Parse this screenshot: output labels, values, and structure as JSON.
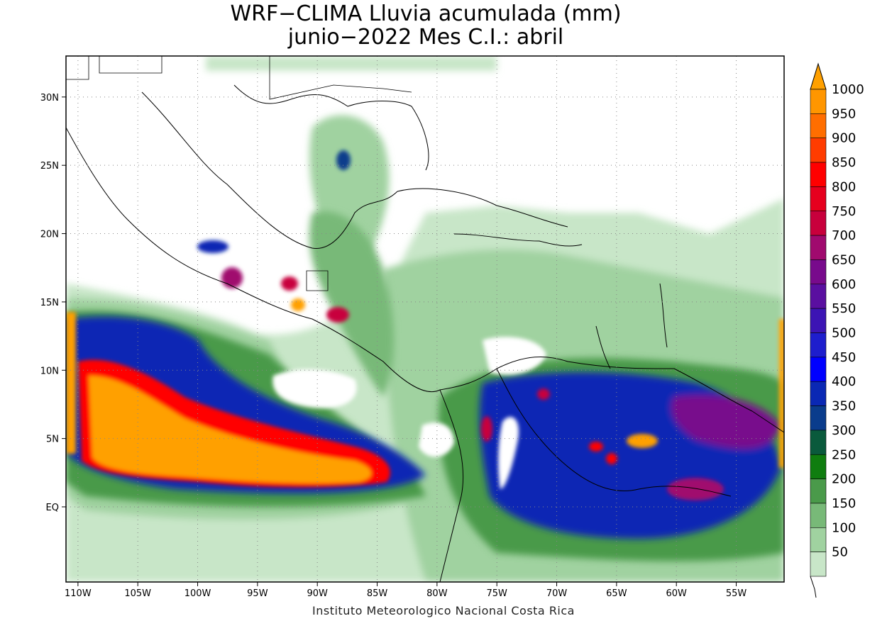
{
  "title": {
    "line1": "WRF−CLIMA Lluvia acumulada (mm)",
    "line2": "junio−2022 Mes C.I.: abril"
  },
  "credit": "Instituto Meteorologico Nacional Costa Rica",
  "map": {
    "lon_range": [
      -111,
      -51
    ],
    "lat_range": [
      -5.5,
      33
    ],
    "lon_ticks": [
      -110,
      -105,
      -100,
      -95,
      -90,
      -85,
      -80,
      -75,
      -70,
      -65,
      -60,
      -55
    ],
    "lon_labels": [
      "110W",
      "105W",
      "100W",
      "95W",
      "90W",
      "85W",
      "80W",
      "75W",
      "70W",
      "65W",
      "60W",
      "55W"
    ],
    "lat_ticks": [
      30,
      25,
      20,
      15,
      10,
      5,
      0
    ],
    "lat_labels": [
      "30N",
      "25N",
      "20N",
      "15N",
      "10N",
      "5N",
      "EQ"
    ],
    "grid": "dotted"
  },
  "colorbar": {
    "unit": "mm",
    "levels": [
      {
        "label": "50",
        "color": "#c8e6c8"
      },
      {
        "label": "100",
        "color": "#a0d2a0"
      },
      {
        "label": "150",
        "color": "#78b978"
      },
      {
        "label": "200",
        "color": "#4a9a4a"
      },
      {
        "label": "250",
        "color": "#0f7d0f"
      },
      {
        "label": "300",
        "color": "#0a5a3c"
      },
      {
        "label": "350",
        "color": "#0a3c8c"
      },
      {
        "label": "400",
        "color": "#0a28b4"
      },
      {
        "label": "450",
        "color": "#0000ff"
      },
      {
        "label": "500",
        "color": "#1e1ecd"
      },
      {
        "label": "550",
        "color": "#3c14b4"
      },
      {
        "label": "600",
        "color": "#5a0fa0"
      },
      {
        "label": "650",
        "color": "#780a8c"
      },
      {
        "label": "700",
        "color": "#a00a6e"
      },
      {
        "label": "750",
        "color": "#c8003c"
      },
      {
        "label": "800",
        "color": "#e6001e"
      },
      {
        "label": "850",
        "color": "#ff0000"
      },
      {
        "label": "900",
        "color": "#ff3c00"
      },
      {
        "label": "950",
        "color": "#ff6e00"
      },
      {
        "label": "1000",
        "color": "#ff9600"
      }
    ],
    "over_color": "#ffa000"
  }
}
